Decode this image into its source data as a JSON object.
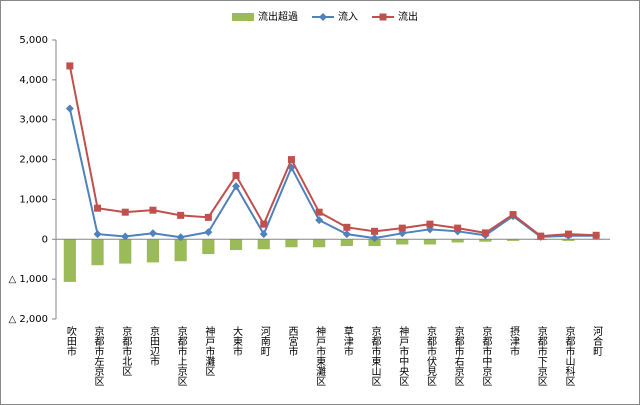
{
  "chart_data": {
    "type": "combo",
    "categories": [
      "吹田市",
      "京都市左京区",
      "京都市北区",
      "京田辺市",
      "京都市上京区",
      "神戸市灘区",
      "大東市",
      "河南町",
      "西宮市",
      "神戸市東灘区",
      "草津市",
      "京都市東山区",
      "神戸市中央区",
      "京都市伏見区",
      "京都市右京区",
      "京都市中京区",
      "摂津市",
      "京都市下京区",
      "京都市山科区",
      "河合町"
    ],
    "series": [
      {
        "name": "流出超過",
        "type": "bar",
        "color": "#9bbb59",
        "values": [
          -1070,
          -650,
          -610,
          -580,
          -550,
          -370,
          -270,
          -250,
          -200,
          -200,
          -170,
          -170,
          -130,
          -130,
          -80,
          -60,
          -40,
          -20,
          -40,
          -10
        ]
      },
      {
        "name": "流入",
        "type": "line",
        "marker": "diamond",
        "color": "#4f81bd",
        "values": [
          3280,
          130,
          70,
          150,
          50,
          180,
          1330,
          130,
          1800,
          480,
          130,
          30,
          150,
          250,
          200,
          100,
          580,
          60,
          90,
          90
        ]
      },
      {
        "name": "流出",
        "type": "line",
        "marker": "square",
        "color": "#c0504d",
        "values": [
          4350,
          780,
          680,
          730,
          600,
          550,
          1600,
          380,
          2000,
          680,
          300,
          200,
          280,
          380,
          280,
          160,
          620,
          80,
          130,
          100
        ]
      }
    ],
    "ylim": [
      -2000,
      5000
    ],
    "yticks": [
      {
        "value": -2000,
        "label": "△ 2,000"
      },
      {
        "value": -1000,
        "label": "△ 1,000"
      },
      0,
      {
        "value": 1000,
        "label": "1,000"
      },
      {
        "value": 2000,
        "label": "2,000"
      },
      {
        "value": 3000,
        "label": "3,000"
      },
      {
        "value": 4000,
        "label": "4,000"
      },
      {
        "value": 5000,
        "label": "5,000"
      }
    ],
    "grid": false,
    "legend": "top"
  }
}
